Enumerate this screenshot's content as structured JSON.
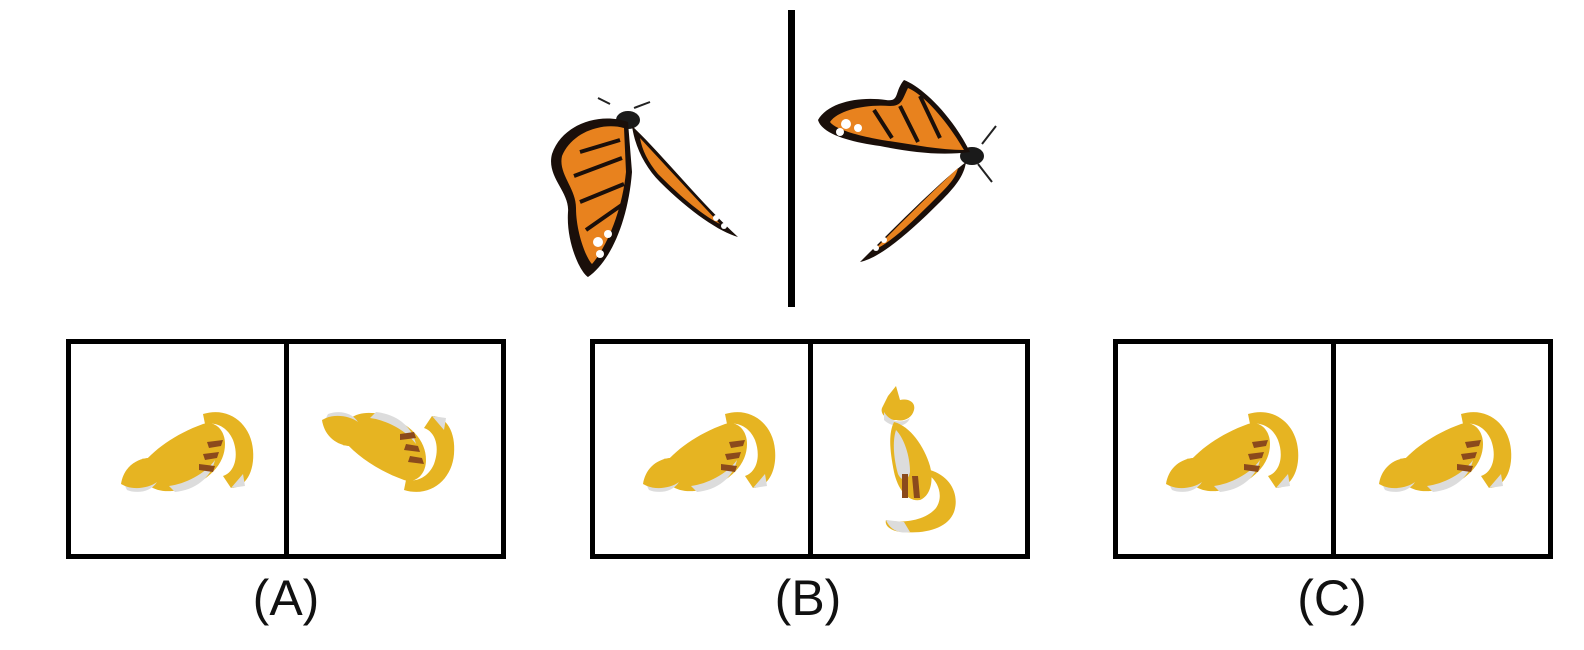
{
  "options": [
    {
      "label": "(A)"
    },
    {
      "label": "(B)"
    },
    {
      "label": "(C)"
    }
  ],
  "colors": {
    "wing_orange": "#e8821e",
    "wing_black": "#1a0f0a",
    "fox_yellow": "#e6b422",
    "fox_white": "#dcdcdc",
    "fox_brown": "#8b4a1c",
    "frame": "#000000"
  }
}
